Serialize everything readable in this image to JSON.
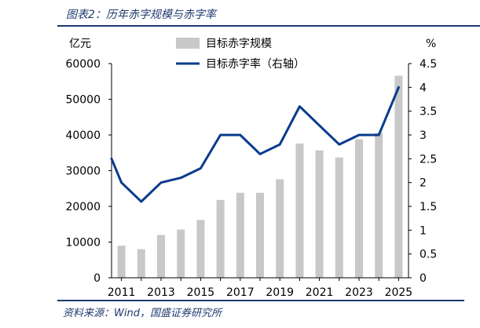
{
  "figure": {
    "title": "图表2：历年赤字规模与赤字率",
    "source": "资料来源：Wind，国盛证券研究所"
  },
  "colors": {
    "bar": "#c8c8c8",
    "line": "#0a3b8c",
    "rule": "#1f3a6e",
    "title_text": "#1f3a6e"
  },
  "chart_data": {
    "type": "bar",
    "title": "",
    "x": [
      2011,
      2012,
      2013,
      2014,
      2015,
      2016,
      2017,
      2018,
      2019,
      2020,
      2021,
      2022,
      2023,
      2024,
      2025
    ],
    "x_tick_labels": [
      "2011",
      "2013",
      "2015",
      "2017",
      "2019",
      "2021",
      "2023",
      "2025"
    ],
    "series": [
      {
        "name": "目标赤字规模",
        "type": "bar",
        "axis": "left",
        "values": [
          9000,
          8000,
          12000,
          13500,
          16200,
          21800,
          23800,
          23800,
          27600,
          37600,
          35700,
          33700,
          38800,
          40600,
          56600
        ]
      },
      {
        "name": "目标赤字率（右轴）",
        "type": "line",
        "axis": "right",
        "values": [
          2.5,
          2.0,
          1.6,
          2.0,
          2.1,
          2.3,
          3.0,
          3.0,
          2.6,
          2.8,
          3.6,
          3.2,
          2.8,
          3.0,
          3.0,
          4.0
        ],
        "x": [
          2010.5,
          2011,
          2012,
          2013,
          2014,
          2015,
          2016,
          2017,
          2018,
          2019,
          2020,
          2021,
          2022,
          2023,
          2024,
          2025
        ]
      }
    ],
    "y_left": {
      "unit": "亿元",
      "range": [
        0,
        60000
      ],
      "ticks": [
        "0",
        "10000",
        "20000",
        "30000",
        "40000",
        "50000",
        "60000"
      ]
    },
    "y_right": {
      "unit": "%",
      "range": [
        0,
        4.5
      ],
      "ticks": [
        "0",
        "0.5",
        "1",
        "1.5",
        "2",
        "2.5",
        "3",
        "3.5",
        "4",
        "4.5"
      ]
    },
    "grid": false,
    "legend_position": "top-center"
  }
}
